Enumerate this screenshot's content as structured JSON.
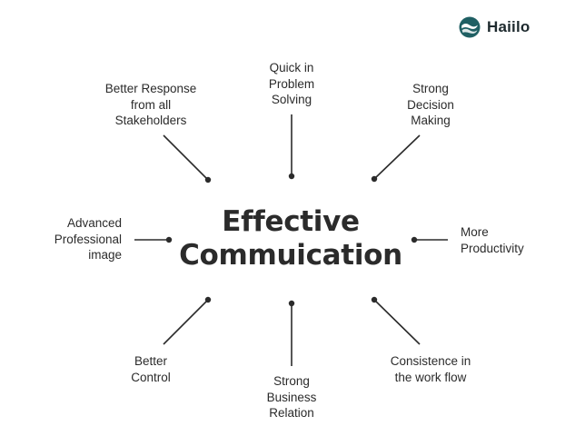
{
  "brand": {
    "name": "Haiilo",
    "logo_colors": [
      "#1f5f63",
      "#3a8f8c"
    ]
  },
  "diagram": {
    "center": {
      "lines": [
        "Effective",
        "Commuication"
      ]
    },
    "benefits": [
      {
        "id": "top",
        "lines": [
          "Quick in",
          "Problem",
          "Solving"
        ]
      },
      {
        "id": "top-left",
        "lines": [
          "Better Response",
          "from all",
          "Stakeholders"
        ]
      },
      {
        "id": "top-right",
        "lines": [
          "Strong",
          "Decision",
          "Making"
        ]
      },
      {
        "id": "left",
        "lines": [
          "Advanced",
          "Professional",
          "image"
        ]
      },
      {
        "id": "right",
        "lines": [
          "More",
          "Productivity"
        ]
      },
      {
        "id": "bottom-left",
        "lines": [
          "Better",
          "Control"
        ]
      },
      {
        "id": "bottom",
        "lines": [
          "Strong",
          "Business",
          "Relation"
        ]
      },
      {
        "id": "bottom-right",
        "lines": [
          "Consistence in",
          "the work flow"
        ]
      }
    ]
  },
  "colors": {
    "text": "#2b2b2b",
    "background": "#ffffff"
  }
}
